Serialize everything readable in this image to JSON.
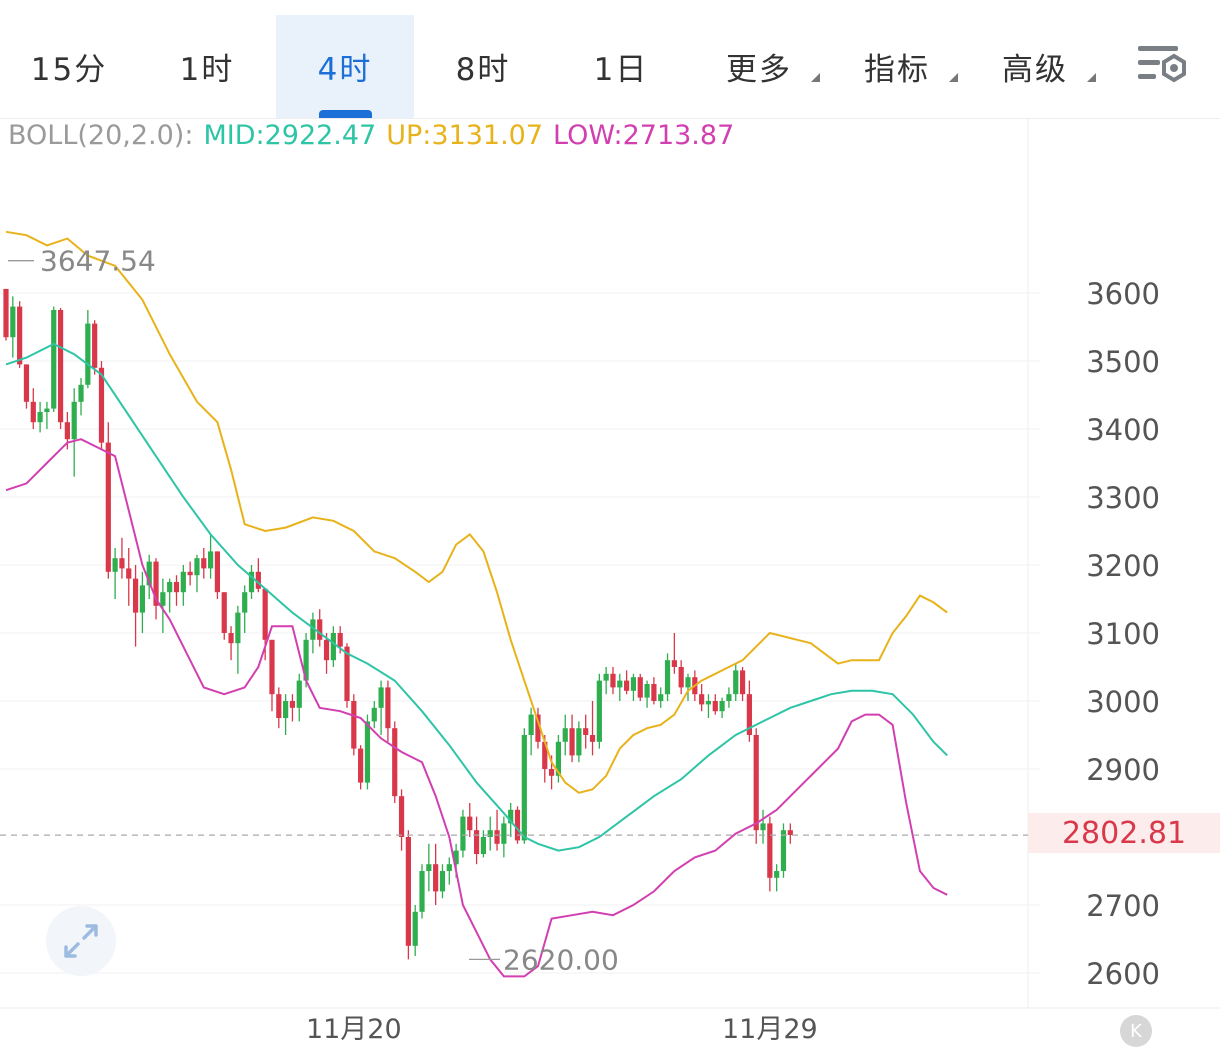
{
  "tabs": [
    {
      "label": "15分",
      "active": false,
      "dropdown": false
    },
    {
      "label": "1时",
      "active": false,
      "dropdown": false
    },
    {
      "label": "4时",
      "active": true,
      "dropdown": false
    },
    {
      "label": "8时",
      "active": false,
      "dropdown": false
    },
    {
      "label": "1日",
      "active": false,
      "dropdown": false
    },
    {
      "label": "更多",
      "active": false,
      "dropdown": true
    },
    {
      "label": "指标",
      "active": false,
      "dropdown": true
    },
    {
      "label": "高级",
      "active": false,
      "dropdown": true
    }
  ],
  "settings_icon": "chart-settings-icon",
  "indicator": {
    "name": "BOLL(20,2.0):",
    "mid": "MID:2922.47",
    "up": "UP:3131.07",
    "low": "LOW:2713.87"
  },
  "colors": {
    "up_candle": "#2fae4f",
    "down_candle": "#d9374a",
    "mid": "#2ec4a6",
    "up_band": "#e8b21a",
    "low_band": "#d23fb0",
    "accent": "#1d6fd8",
    "label_gray": "#888888"
  },
  "current_price": "2802.81",
  "high_marker": "3647.54",
  "low_marker": "2620.00",
  "expand_icon": "expand-icon",
  "scroll_button": {
    "icon": "scroll-to-latest-icon",
    "label": "K"
  },
  "chart_data": {
    "type": "candlestick",
    "interval": "4时",
    "ylim": [
      2580,
      3760
    ],
    "y_ticks": [
      3600,
      3500,
      3400,
      3300,
      3200,
      3100,
      3000,
      2900,
      2700,
      2600
    ],
    "x_ticks": [
      {
        "index": 51,
        "label": "11月20"
      },
      {
        "index": 112,
        "label": "11月29"
      }
    ],
    "grid": true,
    "ohlc": [
      [
        3606,
        3606,
        3530,
        3535
      ],
      [
        3535,
        3595,
        3505,
        3580
      ],
      [
        3580,
        3588,
        3490,
        3495
      ],
      [
        3495,
        3495,
        3430,
        3440
      ],
      [
        3440,
        3460,
        3400,
        3410
      ],
      [
        3410,
        3440,
        3395,
        3425
      ],
      [
        3425,
        3440,
        3400,
        3430
      ],
      [
        3430,
        3580,
        3425,
        3575
      ],
      [
        3575,
        3578,
        3400,
        3410
      ],
      [
        3410,
        3425,
        3370,
        3385
      ],
      [
        3385,
        3460,
        3330,
        3440
      ],
      [
        3440,
        3475,
        3420,
        3465
      ],
      [
        3465,
        3575,
        3460,
        3555
      ],
      [
        3555,
        3560,
        3480,
        3490
      ],
      [
        3490,
        3500,
        3370,
        3380
      ],
      [
        3380,
        3410,
        3180,
        3190
      ],
      [
        3190,
        3225,
        3150,
        3210
      ],
      [
        3210,
        3240,
        3180,
        3195
      ],
      [
        3195,
        3225,
        3140,
        3180
      ],
      [
        3180,
        3200,
        3080,
        3130
      ],
      [
        3130,
        3190,
        3100,
        3170
      ],
      [
        3170,
        3215,
        3150,
        3205
      ],
      [
        3205,
        3210,
        3120,
        3140
      ],
      [
        3140,
        3180,
        3100,
        3160
      ],
      [
        3160,
        3180,
        3130,
        3175
      ],
      [
        3175,
        3185,
        3140,
        3160
      ],
      [
        3160,
        3200,
        3140,
        3190
      ],
      [
        3190,
        3205,
        3170,
        3185
      ],
      [
        3185,
        3215,
        3160,
        3210
      ],
      [
        3210,
        3225,
        3180,
        3195
      ],
      [
        3195,
        3245,
        3180,
        3220
      ],
      [
        3220,
        3220,
        3150,
        3160
      ],
      [
        3160,
        3160,
        3090,
        3100
      ],
      [
        3100,
        3110,
        3060,
        3085
      ],
      [
        3085,
        3140,
        3040,
        3130
      ],
      [
        3130,
        3170,
        3100,
        3160
      ],
      [
        3160,
        3200,
        3150,
        3190
      ],
      [
        3190,
        3210,
        3160,
        3165
      ],
      [
        3165,
        3165,
        3060,
        3090
      ],
      [
        3090,
        3090,
        2985,
        3010
      ],
      [
        3010,
        3020,
        2960,
        2975
      ],
      [
        2975,
        3010,
        2950,
        3000
      ],
      [
        3000,
        3010,
        2970,
        2990
      ],
      [
        2990,
        3040,
        2970,
        3030
      ],
      [
        3030,
        3100,
        3020,
        3090
      ],
      [
        3090,
        3130,
        3070,
        3120
      ],
      [
        3120,
        3135,
        3080,
        3090
      ],
      [
        3090,
        3100,
        3040,
        3060
      ],
      [
        3060,
        3110,
        3050,
        3100
      ],
      [
        3100,
        3110,
        3070,
        3080
      ],
      [
        3080,
        3085,
        2990,
        3000
      ],
      [
        3000,
        3010,
        2920,
        2930
      ],
      [
        2930,
        2935,
        2870,
        2880
      ],
      [
        2880,
        2980,
        2870,
        2970
      ],
      [
        2970,
        3000,
        2960,
        2990
      ],
      [
        2990,
        3030,
        2950,
        3020
      ],
      [
        3020,
        3030,
        2940,
        2960
      ],
      [
        2960,
        2970,
        2850,
        2860
      ],
      [
        2860,
        2870,
        2780,
        2800
      ],
      [
        2800,
        2810,
        2620,
        2640
      ],
      [
        2640,
        2700,
        2625,
        2690
      ],
      [
        2690,
        2760,
        2680,
        2750
      ],
      [
        2750,
        2790,
        2720,
        2760
      ],
      [
        2760,
        2790,
        2700,
        2720
      ],
      [
        2720,
        2760,
        2710,
        2750
      ],
      [
        2750,
        2770,
        2730,
        2760
      ],
      [
        2760,
        2790,
        2740,
        2780
      ],
      [
        2780,
        2840,
        2770,
        2830
      ],
      [
        2830,
        2850,
        2800,
        2810
      ],
      [
        2810,
        2830,
        2760,
        2775
      ],
      [
        2775,
        2810,
        2770,
        2800
      ],
      [
        2800,
        2830,
        2780,
        2810
      ],
      [
        2810,
        2840,
        2780,
        2790
      ],
      [
        2790,
        2830,
        2770,
        2820
      ],
      [
        2820,
        2850,
        2800,
        2840
      ],
      [
        2840,
        2845,
        2790,
        2795
      ],
      [
        2795,
        2960,
        2790,
        2950
      ],
      [
        2950,
        2990,
        2920,
        2980
      ],
      [
        2980,
        2990,
        2930,
        2940
      ],
      [
        2940,
        2950,
        2880,
        2900
      ],
      [
        2900,
        2920,
        2870,
        2890
      ],
      [
        2890,
        2950,
        2880,
        2940
      ],
      [
        2940,
        2980,
        2920,
        2960
      ],
      [
        2960,
        2980,
        2910,
        2920
      ],
      [
        2920,
        2970,
        2910,
        2960
      ],
      [
        2960,
        2980,
        2930,
        2950
      ],
      [
        2950,
        3000,
        2920,
        2940
      ],
      [
        2940,
        3040,
        2930,
        3030
      ],
      [
        3030,
        3050,
        3010,
        3040
      ],
      [
        3040,
        3050,
        3010,
        3020
      ],
      [
        3020,
        3040,
        3000,
        3030
      ],
      [
        3030,
        3045,
        3010,
        3015
      ],
      [
        3015,
        3040,
        3000,
        3035
      ],
      [
        3035,
        3040,
        3000,
        3005
      ],
      [
        3005,
        3030,
        2990,
        3025
      ],
      [
        3025,
        3035,
        2995,
        3000
      ],
      [
        3000,
        3020,
        2990,
        3010
      ],
      [
        3010,
        3070,
        3000,
        3060
      ],
      [
        3060,
        3100,
        3040,
        3050
      ],
      [
        3050,
        3060,
        3010,
        3020
      ],
      [
        3020,
        3040,
        3000,
        3035
      ],
      [
        3035,
        3045,
        3000,
        3010
      ],
      [
        3010,
        3025,
        2985,
        2995
      ],
      [
        2995,
        3010,
        2975,
        3000
      ],
      [
        3000,
        3010,
        2980,
        2985
      ],
      [
        2985,
        3005,
        2975,
        3000
      ],
      [
        3000,
        3020,
        2990,
        3010
      ],
      [
        3010,
        3055,
        3000,
        3045
      ],
      [
        3045,
        3050,
        3000,
        3010
      ],
      [
        3010,
        3030,
        2940,
        2950
      ],
      [
        2950,
        2960,
        2790,
        2810
      ],
      [
        2810,
        2840,
        2790,
        2820
      ],
      [
        2820,
        2830,
        2720,
        2740
      ],
      [
        2740,
        2760,
        2720,
        2750
      ],
      [
        2750,
        2820,
        2740,
        2810
      ],
      [
        2810,
        2820,
        2790,
        2803
      ]
    ],
    "series": [
      {
        "name": "MID",
        "points": [
          [
            0,
            3495
          ],
          [
            3,
            3505
          ],
          [
            7,
            3525
          ],
          [
            10,
            3510
          ],
          [
            14,
            3480
          ],
          [
            18,
            3420
          ],
          [
            22,
            3360
          ],
          [
            26,
            3300
          ],
          [
            30,
            3245
          ],
          [
            34,
            3200
          ],
          [
            38,
            3165
          ],
          [
            42,
            3130
          ],
          [
            46,
            3100
          ],
          [
            50,
            3070
          ],
          [
            53,
            3055
          ],
          [
            57,
            3030
          ],
          [
            61,
            2985
          ],
          [
            65,
            2935
          ],
          [
            69,
            2880
          ],
          [
            73,
            2835
          ],
          [
            76,
            2800
          ],
          [
            78,
            2790
          ],
          [
            81,
            2780
          ],
          [
            84,
            2785
          ],
          [
            87,
            2800
          ],
          [
            91,
            2830
          ],
          [
            95,
            2860
          ],
          [
            99,
            2885
          ],
          [
            103,
            2920
          ],
          [
            107,
            2950
          ],
          [
            111,
            2970
          ],
          [
            115,
            2990
          ],
          [
            118,
            3000
          ],
          [
            121,
            3010
          ],
          [
            124,
            3015
          ],
          [
            127,
            3015
          ],
          [
            130,
            3010
          ],
          [
            133,
            2980
          ],
          [
            136,
            2940
          ],
          [
            138,
            2920
          ]
        ]
      },
      {
        "name": "UP",
        "points": [
          [
            0,
            3690
          ],
          [
            3,
            3685
          ],
          [
            6,
            3670
          ],
          [
            9,
            3680
          ],
          [
            12,
            3655
          ],
          [
            16,
            3640
          ],
          [
            20,
            3590
          ],
          [
            24,
            3510
          ],
          [
            28,
            3440
          ],
          [
            31,
            3410
          ],
          [
            33,
            3340
          ],
          [
            35,
            3260
          ],
          [
            38,
            3250
          ],
          [
            41,
            3255
          ],
          [
            45,
            3270
          ],
          [
            48,
            3265
          ],
          [
            51,
            3250
          ],
          [
            54,
            3220
          ],
          [
            57,
            3210
          ],
          [
            60,
            3190
          ],
          [
            62,
            3175
          ],
          [
            64,
            3190
          ],
          [
            66,
            3230
          ],
          [
            68,
            3245
          ],
          [
            70,
            3220
          ],
          [
            72,
            3160
          ],
          [
            74,
            3090
          ],
          [
            76,
            3030
          ],
          [
            78,
            2970
          ],
          [
            80,
            2910
          ],
          [
            82,
            2880
          ],
          [
            84,
            2865
          ],
          [
            86,
            2870
          ],
          [
            88,
            2890
          ],
          [
            90,
            2930
          ],
          [
            92,
            2950
          ],
          [
            94,
            2960
          ],
          [
            96,
            2965
          ],
          [
            98,
            2980
          ],
          [
            100,
            3015
          ],
          [
            102,
            3030
          ],
          [
            104,
            3040
          ],
          [
            106,
            3050
          ],
          [
            108,
            3060
          ],
          [
            110,
            3080
          ],
          [
            112,
            3100
          ],
          [
            114,
            3095
          ],
          [
            116,
            3090
          ],
          [
            118,
            3085
          ],
          [
            120,
            3070
          ],
          [
            122,
            3055
          ],
          [
            124,
            3060
          ],
          [
            126,
            3060
          ],
          [
            128,
            3060
          ],
          [
            130,
            3100
          ],
          [
            132,
            3125
          ],
          [
            134,
            3155
          ],
          [
            136,
            3145
          ],
          [
            138,
            3130
          ]
        ]
      },
      {
        "name": "LOW",
        "points": [
          [
            0,
            3310
          ],
          [
            3,
            3320
          ],
          [
            6,
            3350
          ],
          [
            9,
            3380
          ],
          [
            11,
            3385
          ],
          [
            14,
            3370
          ],
          [
            16,
            3360
          ],
          [
            18,
            3280
          ],
          [
            20,
            3200
          ],
          [
            22,
            3150
          ],
          [
            24,
            3120
          ],
          [
            26,
            3080
          ],
          [
            29,
            3020
          ],
          [
            32,
            3010
          ],
          [
            35,
            3020
          ],
          [
            37,
            3050
          ],
          [
            39,
            3110
          ],
          [
            42,
            3110
          ],
          [
            44,
            3030
          ],
          [
            46,
            2990
          ],
          [
            49,
            2985
          ],
          [
            52,
            2975
          ],
          [
            55,
            2945
          ],
          [
            58,
            2925
          ],
          [
            61,
            2910
          ],
          [
            63,
            2860
          ],
          [
            65,
            2800
          ],
          [
            67,
            2700
          ],
          [
            69,
            2660
          ],
          [
            71,
            2620
          ],
          [
            73,
            2595
          ],
          [
            76,
            2595
          ],
          [
            78,
            2610
          ],
          [
            80,
            2680
          ],
          [
            83,
            2685
          ],
          [
            86,
            2690
          ],
          [
            89,
            2685
          ],
          [
            92,
            2700
          ],
          [
            95,
            2720
          ],
          [
            98,
            2750
          ],
          [
            101,
            2770
          ],
          [
            104,
            2780
          ],
          [
            107,
            2805
          ],
          [
            110,
            2820
          ],
          [
            113,
            2840
          ],
          [
            116,
            2870
          ],
          [
            119,
            2900
          ],
          [
            122,
            2930
          ],
          [
            124,
            2970
          ],
          [
            126,
            2980
          ],
          [
            128,
            2980
          ],
          [
            130,
            2965
          ],
          [
            132,
            2850
          ],
          [
            134,
            2750
          ],
          [
            136,
            2725
          ],
          [
            138,
            2715
          ]
        ]
      }
    ]
  }
}
